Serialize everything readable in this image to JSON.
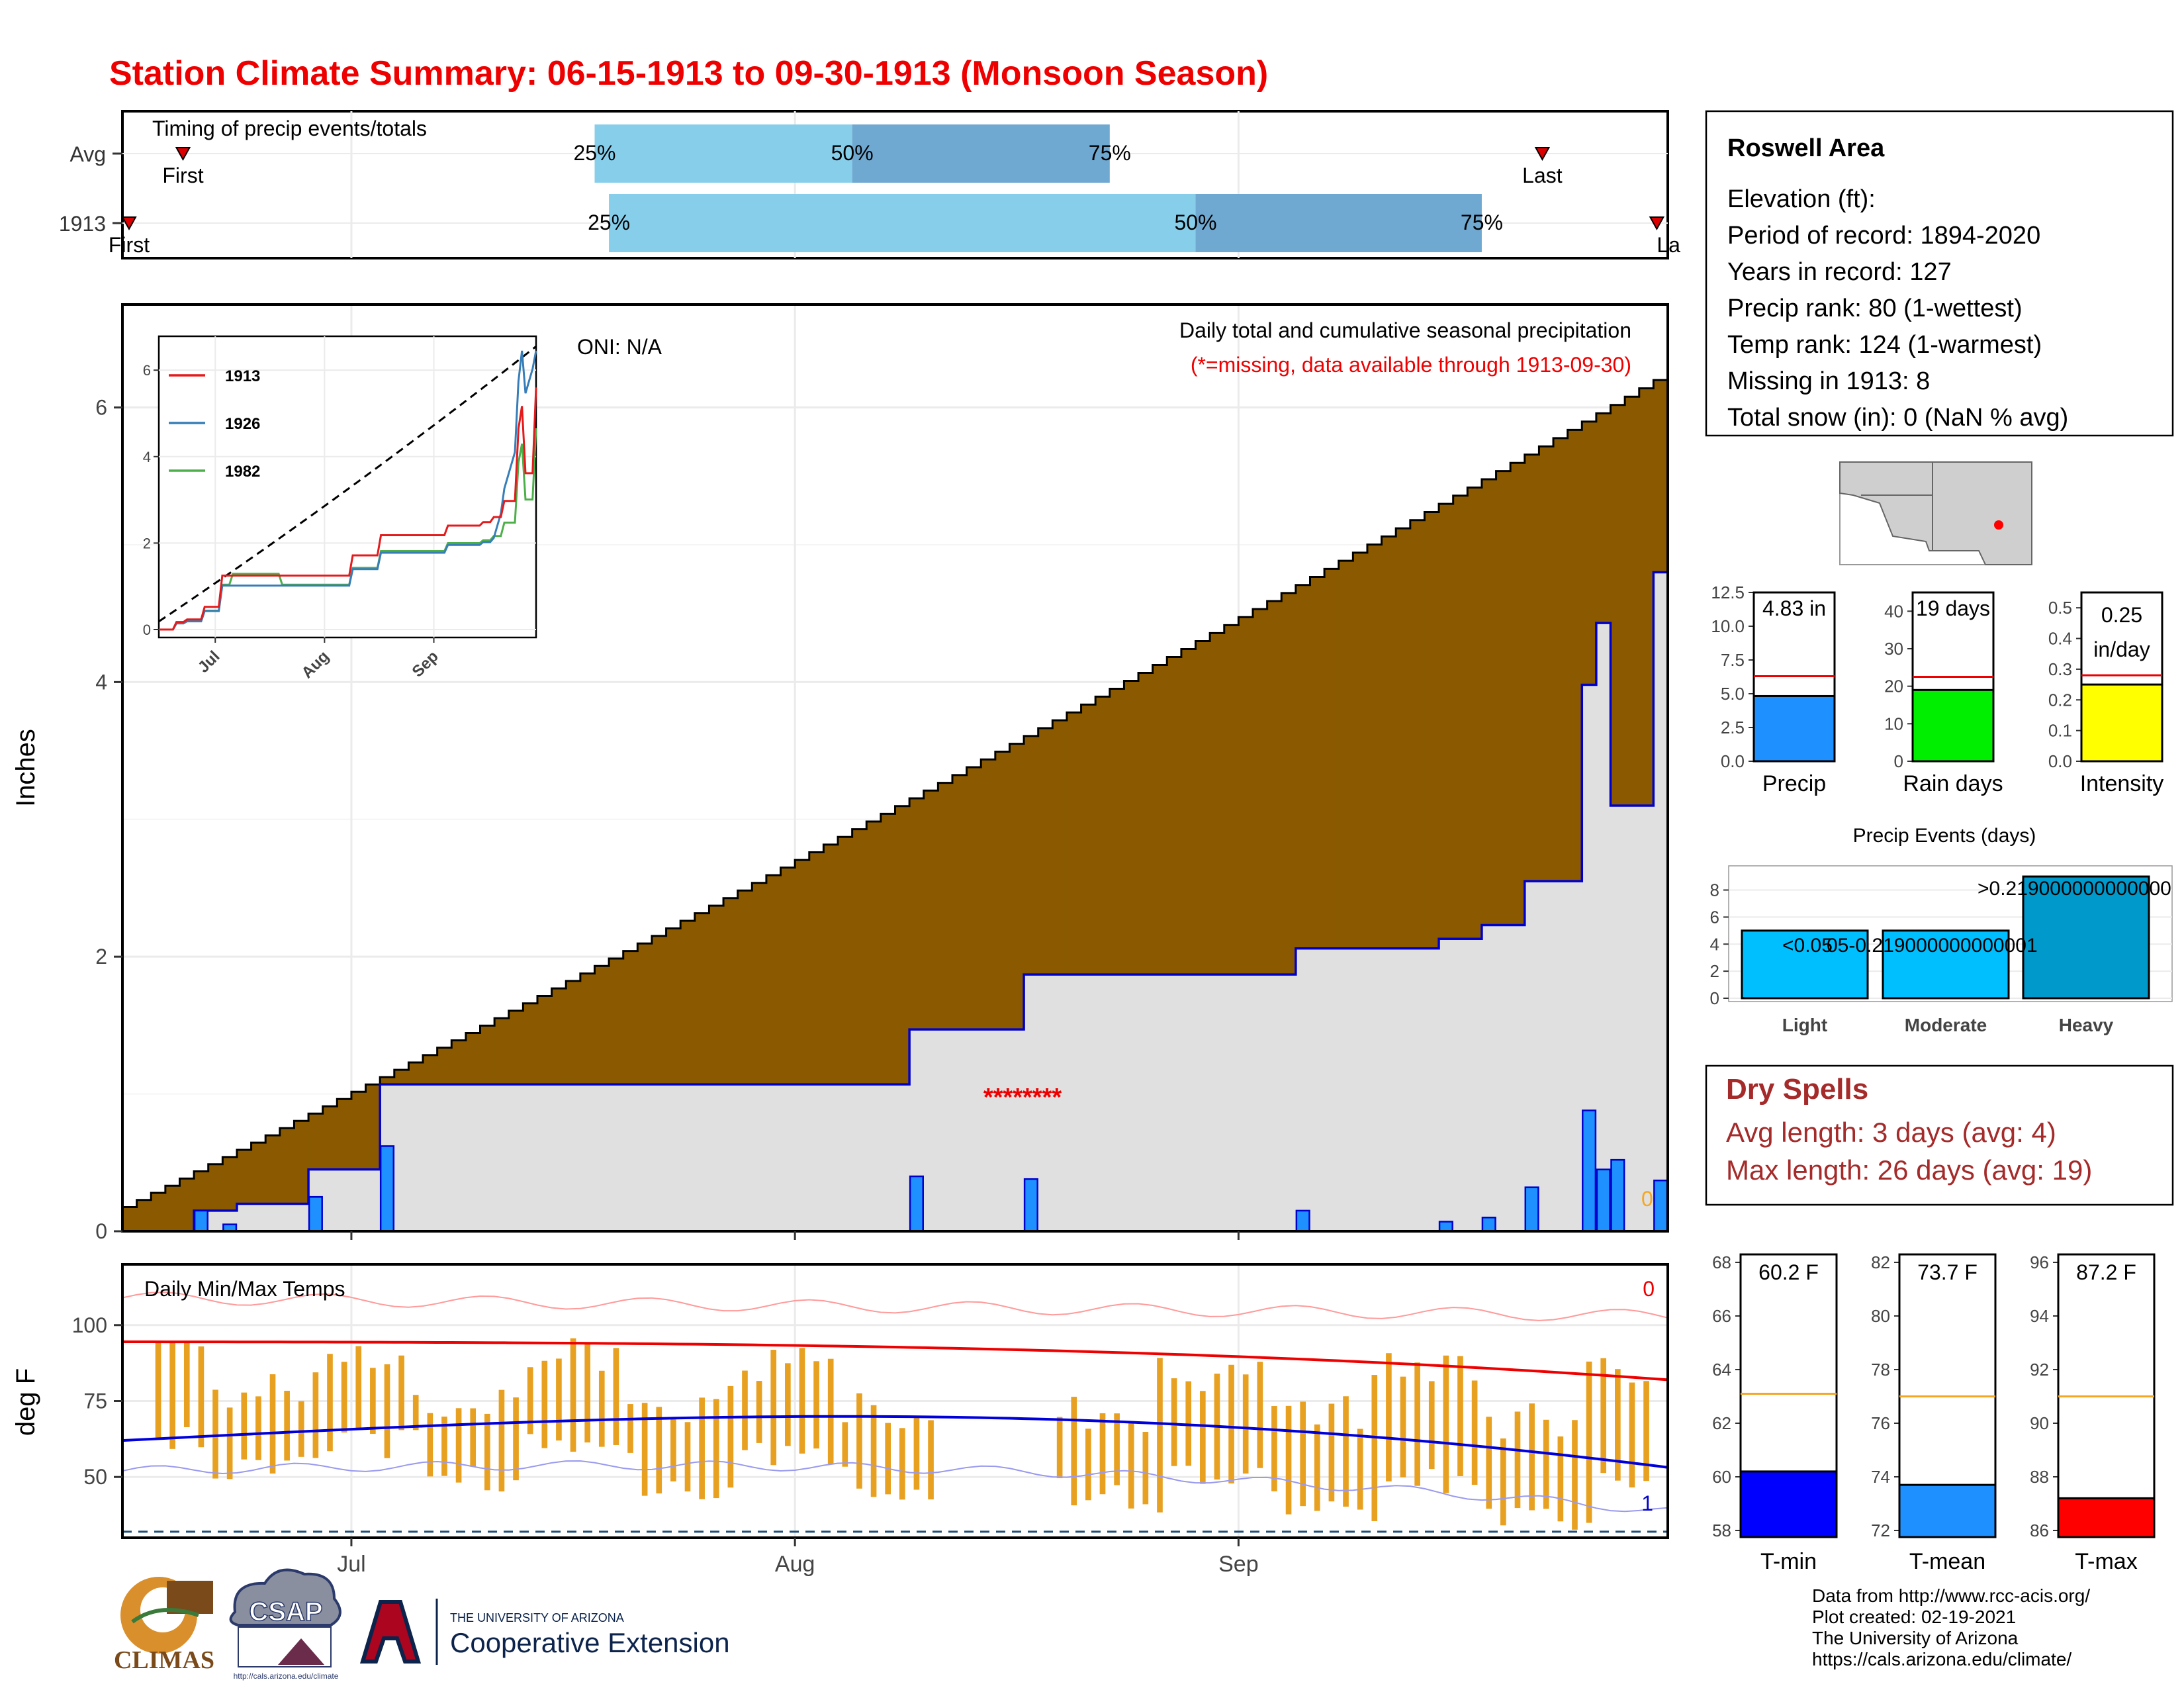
{
  "title": "Station Climate Summary: 06-15-1913 to 09-30-1913 (Monsoon Season)",
  "colors": {
    "title": "#ee0000",
    "brown": "#8b5a00",
    "green": "#008800",
    "blue_line": "#0000cc",
    "bar_blue": "#1e90ff",
    "grey_fill": "#e0e0e0",
    "light_blue": "#87ceeb",
    "mid_blue": "#6fa8d0",
    "orange": "#e8a020",
    "dry_red": "#a52a2a"
  },
  "month_labels": [
    "Jul",
    "Aug",
    "Sep"
  ],
  "timing": {
    "title": "Timing of precip events/totals",
    "rows": [
      {
        "label": "Avg",
        "first_label": "First",
        "last_label": "Last",
        "pct_labels": [
          "25%",
          "50%",
          "75%"
        ],
        "first_day": 4,
        "last_day": 99,
        "p25": 33,
        "p50": 51,
        "p75": 69
      },
      {
        "label": "1913",
        "first_label": "First",
        "last_label": "La",
        "pct_labels": [
          "25%",
          "50%",
          "75%"
        ],
        "first_day": 0,
        "last_day": 107,
        "p25": 34,
        "p50": 75,
        "p75": 95
      }
    ]
  },
  "main": {
    "y_label": "Inches",
    "y_ticks": [
      "0",
      "2",
      "4",
      "6"
    ],
    "oni": "ONI: N/A",
    "desc": "Daily total and cumulative seasonal precipitation",
    "missing_note": "(*=missing, data available through 1913-09-30)",
    "missing_marks": "********",
    "zero_label": "0"
  },
  "inset": {
    "y_ticks": [
      "0",
      "2",
      "4",
      "6"
    ],
    "x_ticks": [
      "Jul",
      "Aug",
      "Sep"
    ],
    "legend": [
      "1913",
      "1926",
      "1982"
    ],
    "colors": [
      "#e41a1c",
      "#377eb8",
      "#4daf4a"
    ]
  },
  "temps": {
    "title": "Daily Min/Max Temps",
    "y_label": "deg F",
    "y_ticks": [
      "50",
      "75",
      "100"
    ],
    "top_right": "0",
    "bottom_right": "1"
  },
  "station": {
    "name": "Roswell Area",
    "lines": [
      "Elevation (ft):",
      "Period of record: 1894-2020",
      "Years in record: 127",
      "Precip rank: 80 (1-wettest)",
      "Temp rank: 124 (1-warmest)",
      "Missing in 1913: 8",
      "Total snow (in): 0 (NaN % avg)"
    ]
  },
  "summary_bars": [
    {
      "label": "Precip",
      "value_text": "4.83 in",
      "value": 4.83,
      "avg": 6.3,
      "max": 12.5,
      "ticks": [
        "0.0",
        "2.5",
        "5.0",
        "7.5",
        "10.0",
        "12.5"
      ],
      "color": "#1e90ff"
    },
    {
      "label": "Rain days",
      "value_text": "19 days",
      "value": 19,
      "avg": 22.5,
      "max": 45,
      "ticks": [
        "0",
        "10",
        "20",
        "30",
        "40"
      ],
      "color": "#00ee00"
    },
    {
      "label": "Intensity",
      "value_text": "0.25 in/day",
      "value": 0.25,
      "avg": 0.28,
      "max": 0.55,
      "ticks": [
        "0.0",
        "0.1",
        "0.2",
        "0.3",
        "0.4",
        "0.5"
      ],
      "color": "#ffff00"
    }
  ],
  "events": {
    "title": "Precip Events (days)",
    "categories": [
      "Light",
      "Moderate",
      "Heavy"
    ],
    "values": [
      5,
      5,
      9
    ],
    "labels": [
      "<0.05",
      "05-0.219000000000001",
      ">0.219000000000000"
    ],
    "y_ticks": [
      "0",
      "2",
      "4",
      "6",
      "8"
    ]
  },
  "dry_spells": {
    "title": "Dry Spells",
    "lines": [
      "Avg length: 3 days (avg: 4)",
      "Max length: 26 days (avg: 19)"
    ]
  },
  "temp_bars": [
    {
      "label": "T-min",
      "value_text": "60.2 F",
      "value": 60.2,
      "avg": 63.1,
      "min": 58,
      "max": 68,
      "ticks": [
        "58",
        "60",
        "62",
        "64",
        "66",
        "68"
      ],
      "color": "#0000ff"
    },
    {
      "label": "T-mean",
      "value_text": "73.7 F",
      "value": 73.7,
      "avg": 77.0,
      "min": 72,
      "max": 82,
      "ticks": [
        "72",
        "74",
        "76",
        "78",
        "80",
        "82"
      ],
      "color": "#1e90ff"
    },
    {
      "label": "T-max",
      "value_text": "87.2 F",
      "value": 87.2,
      "avg": 91.0,
      "min": 86,
      "max": 96,
      "ticks": [
        "86",
        "88",
        "90",
        "92",
        "94",
        "96"
      ],
      "color": "#ff0000"
    }
  ],
  "credits": [
    "Data from http://www.rcc-acis.org/",
    "Plot created: 02-19-2021",
    "The University of Arizona",
    "https://cals.arizona.edu/climate/"
  ],
  "logos": {
    "climas": "CLIMAS",
    "csap": "CSAP",
    "csap_url": "http://cals.arizona.edu/climate",
    "ua_small": "THE UNIVERSITY OF ARIZONA",
    "ua_big": "Cooperative Extension"
  },
  "chart_data": {
    "type": "area",
    "x_start": "1913-06-15",
    "x_end": "1913-09-30",
    "ylim": [
      0,
      6.75
    ],
    "daily_precip": [
      {
        "date": "1913-06-20",
        "value": 0.15
      },
      {
        "date": "1913-06-22",
        "value": 0.05
      },
      {
        "date": "1913-06-28",
        "value": 0.25
      },
      {
        "date": "1913-07-03",
        "value": 0.62
      },
      {
        "date": "1913-08-09",
        "value": 0.4
      },
      {
        "date": "1913-08-17",
        "value": 0.38
      },
      {
        "date": "1913-09-05",
        "value": 0.15
      },
      {
        "date": "1913-09-15",
        "value": 0.07
      },
      {
        "date": "1913-09-18",
        "value": 0.1
      },
      {
        "date": "1913-09-21",
        "value": 0.32
      },
      {
        "date": "1913-09-27",
        "value": 0.52
      },
      {
        "date": "1913-09-25",
        "value": 0.88
      },
      {
        "date": "1913-09-26",
        "value": 0.45
      },
      {
        "date": "1913-09-30",
        "value": 0.37
      }
    ],
    "cumulative_1913": [
      {
        "date": "1913-06-15",
        "value": 0.0
      },
      {
        "date": "1913-06-20",
        "value": 0.15
      },
      {
        "date": "1913-06-23",
        "value": 0.2
      },
      {
        "date": "1913-06-28",
        "value": 0.45
      },
      {
        "date": "1913-07-03",
        "value": 1.07
      },
      {
        "date": "1913-08-09",
        "value": 1.47
      },
      {
        "date": "1913-08-17",
        "value": 1.87
      },
      {
        "date": "1913-09-05",
        "value": 2.06
      },
      {
        "date": "1913-09-15",
        "value": 2.13
      },
      {
        "date": "1913-09-18",
        "value": 2.23
      },
      {
        "date": "1913-09-21",
        "value": 2.55
      },
      {
        "date": "1913-09-27",
        "value": 3.1
      },
      {
        "date": "1913-09-25",
        "value": 3.98
      },
      {
        "date": "1913-09-26",
        "value": 4.43
      },
      {
        "date": "1913-09-30",
        "value": 4.8
      }
    ],
    "cumulative_avg_end": 6.2
  }
}
